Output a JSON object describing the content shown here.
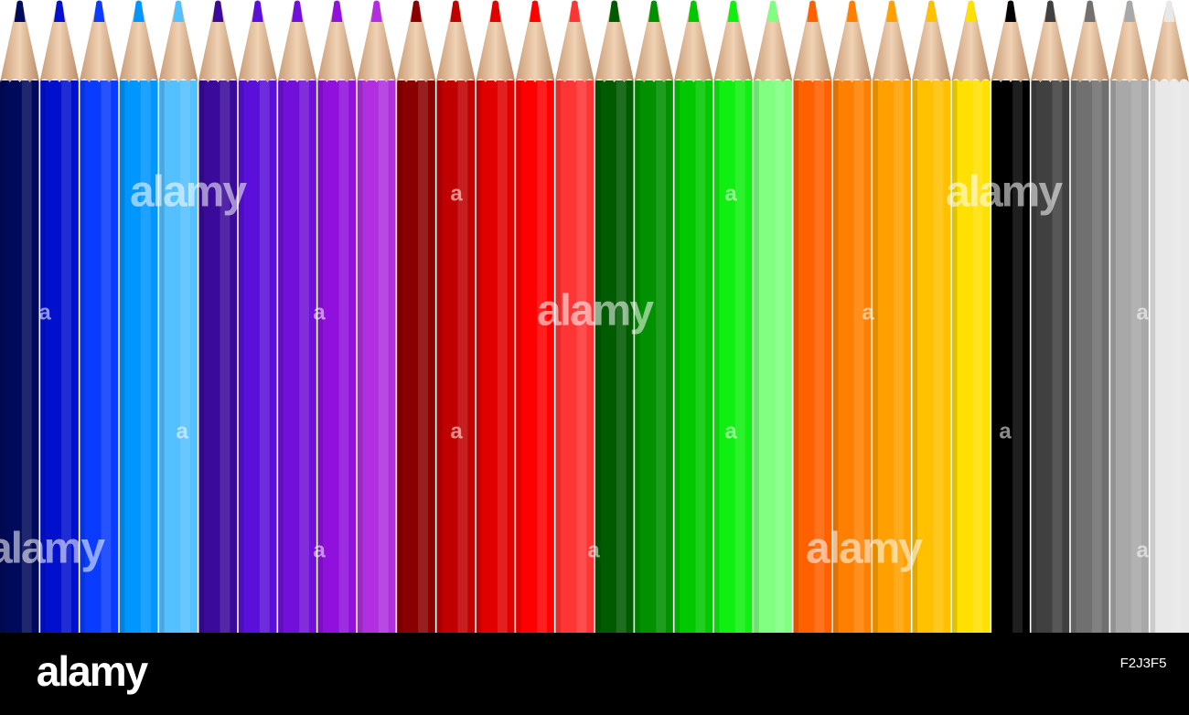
{
  "watermark": {
    "word": "alamy",
    "letter": "a"
  },
  "footer": {
    "logo": "alamy",
    "image_id": "F2J3F5"
  }
}
